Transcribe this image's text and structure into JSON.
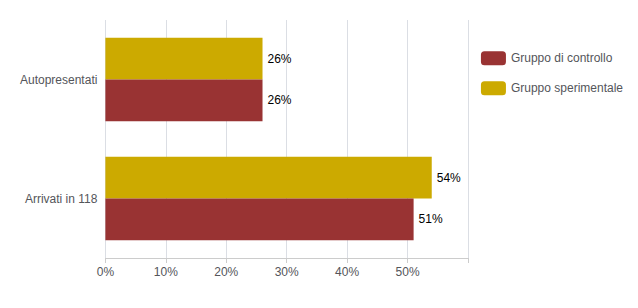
{
  "chart_data": {
    "type": "bar",
    "orientation": "horizontal",
    "categories": [
      "Arrivati in 118",
      "Autopresentati"
    ],
    "series": [
      {
        "name": "Gruppo di controllo",
        "color": "#993333",
        "values": [
          51,
          26
        ],
        "value_labels": [
          "51%",
          "26%"
        ]
      },
      {
        "name": "Gruppo sperimentale",
        "color": "#CCAA00",
        "values": [
          54,
          26
        ],
        "value_labels": [
          "54%",
          "26%"
        ]
      }
    ],
    "xlim": [
      0,
      60
    ],
    "xticks": [
      {
        "value": 0,
        "label": "0%"
      },
      {
        "value": 10,
        "label": "10%"
      },
      {
        "value": 20,
        "label": "20%"
      },
      {
        "value": 30,
        "label": "30%"
      },
      {
        "value": 40,
        "label": "40%"
      },
      {
        "value": 50,
        "label": "50%"
      }
    ],
    "grid": true,
    "legend": "right",
    "data_labels": true
  }
}
